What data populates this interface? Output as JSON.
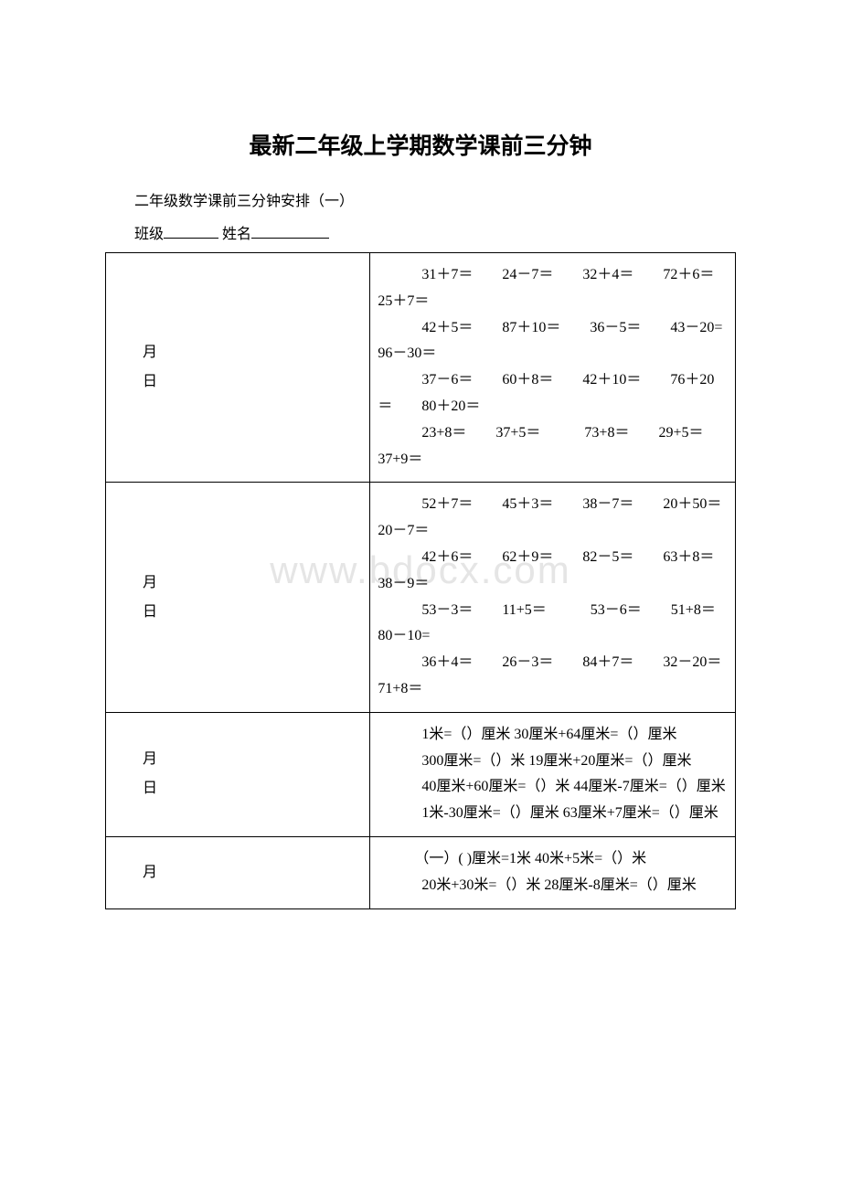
{
  "title": "最新二年级上学期数学课前三分钟",
  "subtitle": "二年级数学课前三分钟安排（一）",
  "formLabel": {
    "class": "班级",
    "name": "姓名"
  },
  "watermark": "www.bdocx.com",
  "rows": [
    {
      "date": {
        "month": "月",
        "day": "日"
      },
      "lines": [
        "　31＋7＝　　24－7＝　　32＋4＝　　72＋6＝　　25＋7＝",
        "　42＋5＝　　87＋10＝　　36－5＝　　43－20=　　96－30＝",
        "　37－6＝　　60＋8＝　　42＋10＝　　76＋20＝　　80＋20＝",
        "　23+8＝　　37+5＝　　　73+8＝　　29+5＝　　37+9＝"
      ]
    },
    {
      "date": {
        "month": "月",
        "day": "日"
      },
      "lines": [
        "　52＋7＝　　45＋3＝　　38－7＝　　20＋50＝　　20－7＝",
        "　42＋6＝　　62＋9＝　　82－5＝　　63＋8＝　　38－9＝",
        "　53－3＝　　11+5＝　　　53－6＝　　51+8＝　　80－10=",
        "　36＋4＝　　26－3＝　　84＋7＝　　32－20＝　　71+8＝"
      ]
    },
    {
      "date": {
        "month": "月",
        "day": "日"
      },
      "lines": [
        "　1米=（）厘米 30厘米+64厘米=（）厘米",
        "　300厘米=（）米 19厘米+20厘米=（）厘米",
        "　40厘米+60厘米=（）米 44厘米-7厘米=（）厘米",
        "　1米-30厘米=（）厘米 63厘米+7厘米=（）厘米"
      ]
    },
    {
      "date": {
        "month": "月",
        "day": ""
      },
      "lines": [
        "　（一）( )厘米=1米 40米+5米=（）米",
        "　20米+30米=（）米 28厘米-8厘米=（）厘米"
      ]
    }
  ],
  "colors": {
    "text": "#000000",
    "background": "#ffffff",
    "border": "#000000",
    "watermark": "#e5e5e5"
  },
  "typography": {
    "title_fontsize": 25,
    "body_fontsize": 16,
    "font_family": "SimSun"
  }
}
